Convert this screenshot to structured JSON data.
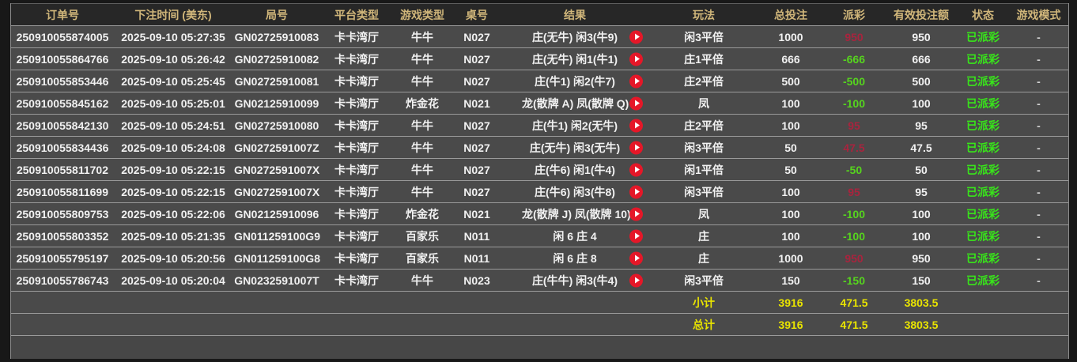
{
  "colors": {
    "header_text": "#d0b67a",
    "payout_positive": "#a8243e",
    "payout_negative": "#56d41e",
    "status_paid": "#38e51a",
    "summary_text": "#e9e400",
    "replay_button": "#e51728",
    "row_background": "#4a4a4a",
    "header_background": "#272727"
  },
  "icons": {
    "replay": "play-icon"
  },
  "table": {
    "columns": [
      {
        "key": "order_id",
        "label": "订单号"
      },
      {
        "key": "bet_time",
        "label": "下注时间 (美东)"
      },
      {
        "key": "round_no",
        "label": "局号"
      },
      {
        "key": "platform",
        "label": "平台类型"
      },
      {
        "key": "game_type",
        "label": "游戏类型"
      },
      {
        "key": "table_no",
        "label": "桌号"
      },
      {
        "key": "result",
        "label": "结果"
      },
      {
        "key": "play_type",
        "label": "玩法"
      },
      {
        "key": "total_bet",
        "label": "总投注"
      },
      {
        "key": "payout",
        "label": "派彩"
      },
      {
        "key": "valid_bet",
        "label": "有效投注额"
      },
      {
        "key": "status",
        "label": "状态"
      },
      {
        "key": "game_mode",
        "label": "游戏模式"
      }
    ],
    "rows": [
      {
        "order_id": "250910055874005",
        "bet_time": "2025-09-10 05:27:35",
        "round_no": "GN02725910083",
        "platform": "卡卡湾厅",
        "game_type": "牛牛",
        "table_no": "N027",
        "result": "庄(无牛) 闲3(牛9)",
        "play_type": "闲3平倍",
        "total_bet": "1000",
        "payout": "950",
        "valid_bet": "950",
        "status": "已派彩",
        "game_mode": "-"
      },
      {
        "order_id": "250910055864766",
        "bet_time": "2025-09-10 05:26:42",
        "round_no": "GN02725910082",
        "platform": "卡卡湾厅",
        "game_type": "牛牛",
        "table_no": "N027",
        "result": "庄(无牛) 闲1(牛1)",
        "play_type": "庄1平倍",
        "total_bet": "666",
        "payout": "-666",
        "valid_bet": "666",
        "status": "已派彩",
        "game_mode": "-"
      },
      {
        "order_id": "250910055853446",
        "bet_time": "2025-09-10 05:25:45",
        "round_no": "GN02725910081",
        "platform": "卡卡湾厅",
        "game_type": "牛牛",
        "table_no": "N027",
        "result": "庄(牛1) 闲2(牛7)",
        "play_type": "庄2平倍",
        "total_bet": "500",
        "payout": "-500",
        "valid_bet": "500",
        "status": "已派彩",
        "game_mode": "-"
      },
      {
        "order_id": "250910055845162",
        "bet_time": "2025-09-10 05:25:01",
        "round_no": "GN02125910099",
        "platform": "卡卡湾厅",
        "game_type": "炸金花",
        "table_no": "N021",
        "result": "龙(散牌 A) 凤(散牌 Q)",
        "play_type": "凤",
        "total_bet": "100",
        "payout": "-100",
        "valid_bet": "100",
        "status": "已派彩",
        "game_mode": "-"
      },
      {
        "order_id": "250910055842130",
        "bet_time": "2025-09-10 05:24:51",
        "round_no": "GN02725910080",
        "platform": "卡卡湾厅",
        "game_type": "牛牛",
        "table_no": "N027",
        "result": "庄(牛1) 闲2(无牛)",
        "play_type": "庄2平倍",
        "total_bet": "100",
        "payout": "95",
        "valid_bet": "95",
        "status": "已派彩",
        "game_mode": "-"
      },
      {
        "order_id": "250910055834436",
        "bet_time": "2025-09-10 05:24:08",
        "round_no": "GN0272591007Z",
        "platform": "卡卡湾厅",
        "game_type": "牛牛",
        "table_no": "N027",
        "result": "庄(无牛) 闲3(无牛)",
        "play_type": "闲3平倍",
        "total_bet": "50",
        "payout": "47.5",
        "valid_bet": "47.5",
        "status": "已派彩",
        "game_mode": "-"
      },
      {
        "order_id": "250910055811702",
        "bet_time": "2025-09-10 05:22:15",
        "round_no": "GN0272591007X",
        "platform": "卡卡湾厅",
        "game_type": "牛牛",
        "table_no": "N027",
        "result": "庄(牛6) 闲1(牛4)",
        "play_type": "闲1平倍",
        "total_bet": "50",
        "payout": "-50",
        "valid_bet": "50",
        "status": "已派彩",
        "game_mode": "-"
      },
      {
        "order_id": "250910055811699",
        "bet_time": "2025-09-10 05:22:15",
        "round_no": "GN0272591007X",
        "platform": "卡卡湾厅",
        "game_type": "牛牛",
        "table_no": "N027",
        "result": "庄(牛6) 闲3(牛8)",
        "play_type": "闲3平倍",
        "total_bet": "100",
        "payout": "95",
        "valid_bet": "95",
        "status": "已派彩",
        "game_mode": "-"
      },
      {
        "order_id": "250910055809753",
        "bet_time": "2025-09-10 05:22:06",
        "round_no": "GN02125910096",
        "platform": "卡卡湾厅",
        "game_type": "炸金花",
        "table_no": "N021",
        "result": "龙(散牌 J) 凤(散牌 10)",
        "play_type": "凤",
        "total_bet": "100",
        "payout": "-100",
        "valid_bet": "100",
        "status": "已派彩",
        "game_mode": "-"
      },
      {
        "order_id": "250910055803352",
        "bet_time": "2025-09-10 05:21:35",
        "round_no": "GN011259100G9",
        "platform": "卡卡湾厅",
        "game_type": "百家乐",
        "table_no": "N011",
        "result": "闲 6 庄 4",
        "play_type": "庄",
        "total_bet": "100",
        "payout": "-100",
        "valid_bet": "100",
        "status": "已派彩",
        "game_mode": "-"
      },
      {
        "order_id": "250910055795197",
        "bet_time": "2025-09-10 05:20:56",
        "round_no": "GN011259100G8",
        "platform": "卡卡湾厅",
        "game_type": "百家乐",
        "table_no": "N011",
        "result": "闲 6 庄 8",
        "play_type": "庄",
        "total_bet": "1000",
        "payout": "950",
        "valid_bet": "950",
        "status": "已派彩",
        "game_mode": "-"
      },
      {
        "order_id": "250910055786743",
        "bet_time": "2025-09-10 05:20:04",
        "round_no": "GN0232591007T",
        "platform": "卡卡湾厅",
        "game_type": "牛牛",
        "table_no": "N023",
        "result": "庄(牛牛) 闲3(牛4)",
        "play_type": "闲3平倍",
        "total_bet": "150",
        "payout": "-150",
        "valid_bet": "150",
        "status": "已派彩",
        "game_mode": "-"
      }
    ],
    "summary": [
      {
        "label": "小计",
        "total_bet": "3916",
        "payout": "471.5",
        "valid_bet": "3803.5"
      },
      {
        "label": "总计",
        "total_bet": "3916",
        "payout": "471.5",
        "valid_bet": "3803.5"
      }
    ]
  }
}
